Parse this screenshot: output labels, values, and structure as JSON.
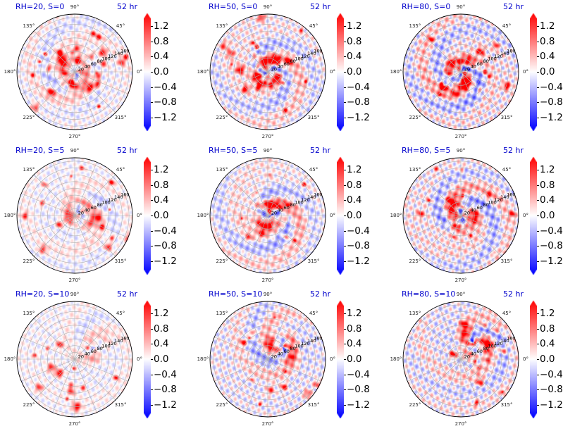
{
  "figure": {
    "colormap": {
      "name": "bwr",
      "negative": "#0000ff",
      "zero": "#ffffff",
      "positive": "#ff0000",
      "extend": "both"
    }
  },
  "chart_data": [
    {
      "type": "heatmap",
      "title": "RH=20, S=0",
      "time_label": "52 hr",
      "projection": "polar",
      "angle_labels": [
        "0°",
        "45°",
        "90°",
        "135°",
        "180°",
        "225°",
        "270°",
        "315°"
      ],
      "radial_labels": [
        "20",
        "40",
        "60",
        "80",
        "100",
        "120",
        "140",
        "160"
      ],
      "colorbar": {
        "ticks": [
          "1.2",
          "0.8",
          "0.4",
          "0.0",
          "−0.4",
          "−0.8",
          "−1.2"
        ],
        "range": [
          -1.4,
          1.4
        ]
      },
      "field": {
        "rh": 20,
        "shear": 0,
        "core": 0.75,
        "ring": 0.55,
        "noise": 0.3,
        "spiral": 0.55,
        "blobs": 30,
        "seed": 11,
        "pos_offset": [
          0,
          0
        ]
      }
    },
    {
      "type": "heatmap",
      "title": "RH=50, S=0",
      "time_label": "52 hr",
      "projection": "polar",
      "angle_labels": [
        "0°",
        "45°",
        "90°",
        "135°",
        "180°",
        "225°",
        "270°",
        "315°"
      ],
      "radial_labels": [
        "20",
        "40",
        "60",
        "80",
        "100",
        "120",
        "140",
        "160"
      ],
      "colorbar": {
        "ticks": [
          "1.2",
          "0.8",
          "0.4",
          "0.0",
          "−0.4",
          "−0.8",
          "−1.2"
        ],
        "range": [
          -1.4,
          1.4
        ]
      },
      "field": {
        "rh": 50,
        "shear": 0,
        "core": 0.95,
        "ring": 0.75,
        "noise": 0.45,
        "spiral": 0.85,
        "blobs": 24,
        "seed": 23,
        "pos_offset": [
          0,
          0
        ]
      }
    },
    {
      "type": "heatmap",
      "title": "RH=80, S=0",
      "time_label": "52 hr",
      "projection": "polar",
      "angle_labels": [
        "0°",
        "45°",
        "90°",
        "135°",
        "180°",
        "225°",
        "270°",
        "315°"
      ],
      "radial_labels": [
        "20",
        "40",
        "60",
        "80",
        "100",
        "120",
        "140",
        "160"
      ],
      "colorbar": {
        "ticks": [
          "1.2",
          "0.8",
          "0.4",
          "0.0",
          "−0.4",
          "−0.8",
          "−1.2"
        ],
        "range": [
          -1.4,
          1.4
        ]
      },
      "field": {
        "rh": 80,
        "shear": 0,
        "core": 1.2,
        "ring": 1.0,
        "noise": 0.55,
        "spiral": 1.0,
        "blobs": 18,
        "seed": 37,
        "pos_offset": [
          0,
          0
        ]
      }
    },
    {
      "type": "heatmap",
      "title": "RH=20, S=5",
      "time_label": "52 hr",
      "projection": "polar",
      "angle_labels": [
        "0°",
        "45°",
        "90°",
        "135°",
        "180°",
        "225°",
        "270°",
        "315°"
      ],
      "radial_labels": [
        "20",
        "40",
        "60",
        "80",
        "100",
        "120",
        "140",
        "160"
      ],
      "colorbar": {
        "ticks": [
          "1.2",
          "0.8",
          "0.4",
          "0.0",
          "−0.4",
          "−0.8",
          "−1.2"
        ],
        "range": [
          -1.4,
          1.4
        ]
      },
      "field": {
        "rh": 20,
        "shear": 5,
        "core": 1.0,
        "ring": 0.35,
        "noise": 0.25,
        "spiral": 0.45,
        "blobs": 14,
        "seed": 41,
        "pos_offset": [
          0.1,
          0.03
        ]
      }
    },
    {
      "type": "heatmap",
      "title": "RH=50, S=5",
      "time_label": "52 hr",
      "projection": "polar",
      "angle_labels": [
        "0°",
        "45°",
        "90°",
        "135°",
        "180°",
        "225°",
        "270°",
        "315°"
      ],
      "radial_labels": [
        "20",
        "40",
        "60",
        "80",
        "100",
        "120",
        "140",
        "160"
      ],
      "colorbar": {
        "ticks": [
          "1.2",
          "0.8",
          "0.4",
          "0.0",
          "−0.4",
          "−0.8",
          "−1.2"
        ],
        "range": [
          -1.4,
          1.4
        ]
      },
      "field": {
        "rh": 50,
        "shear": 5,
        "core": 1.1,
        "ring": 0.85,
        "noise": 0.4,
        "spiral": 0.95,
        "blobs": 14,
        "seed": 53,
        "pos_offset": [
          0.05,
          0.0
        ]
      }
    },
    {
      "type": "heatmap",
      "title": "RH=80, S=5",
      "time_label": "52 hr",
      "projection": "polar",
      "angle_labels": [
        "0°",
        "45°",
        "90°",
        "135°",
        "180°",
        "225°",
        "270°",
        "315°"
      ],
      "radial_labels": [
        "20",
        "40",
        "60",
        "80",
        "100",
        "120",
        "140",
        "160"
      ],
      "colorbar": {
        "ticks": [
          "1.2",
          "0.8",
          "0.4",
          "0.0",
          "−0.4",
          "−0.8",
          "−1.2"
        ],
        "range": [
          -1.4,
          1.4
        ]
      },
      "field": {
        "rh": 80,
        "shear": 5,
        "core": 1.2,
        "ring": 0.95,
        "noise": 0.5,
        "spiral": 1.0,
        "blobs": 14,
        "seed": 67,
        "pos_offset": [
          0.02,
          0.0
        ]
      }
    },
    {
      "type": "heatmap",
      "title": "RH=20, S=10",
      "time_label": "52 hr",
      "projection": "polar",
      "angle_labels": [
        "0°",
        "45°",
        "90°",
        "135°",
        "180°",
        "225°",
        "270°",
        "315°"
      ],
      "radial_labels": [
        "20",
        "40",
        "60",
        "80",
        "100",
        "120",
        "140",
        "160"
      ],
      "colorbar": {
        "ticks": [
          "1.2",
          "0.8",
          "0.4",
          "0.0",
          "−0.4",
          "−0.8",
          "−1.2"
        ],
        "range": [
          -1.4,
          1.4
        ]
      },
      "field": {
        "rh": 20,
        "shear": 10,
        "core": 0.35,
        "ring": 0.25,
        "noise": 0.25,
        "spiral": 0.3,
        "blobs": 16,
        "seed": 71,
        "pos_offset": [
          0.35,
          0.22
        ]
      }
    },
    {
      "type": "heatmap",
      "title": "RH=50, S=10",
      "time_label": "52 hr",
      "projection": "polar",
      "angle_labels": [
        "0°",
        "45°",
        "90°",
        "135°",
        "180°",
        "225°",
        "270°",
        "315°"
      ],
      "radial_labels": [
        "20",
        "40",
        "60",
        "80",
        "100",
        "120",
        "140",
        "160"
      ],
      "colorbar": {
        "ticks": [
          "1.2",
          "0.8",
          "0.4",
          "0.0",
          "−0.4",
          "−0.8",
          "−1.2"
        ],
        "range": [
          -1.4,
          1.4
        ]
      },
      "field": {
        "rh": 50,
        "shear": 10,
        "core": 1.0,
        "ring": 0.7,
        "noise": 0.45,
        "spiral": 0.8,
        "blobs": 12,
        "seed": 83,
        "pos_offset": [
          0.25,
          0.22
        ]
      }
    },
    {
      "type": "heatmap",
      "title": "RH=80, S=10",
      "time_label": "52 hr",
      "projection": "polar",
      "angle_labels": [
        "0°",
        "45°",
        "90°",
        "135°",
        "180°",
        "225°",
        "270°",
        "315°"
      ],
      "radial_labels": [
        "20",
        "40",
        "60",
        "80",
        "100",
        "120",
        "140",
        "160"
      ],
      "colorbar": {
        "ticks": [
          "1.2",
          "0.8",
          "0.4",
          "0.0",
          "−0.4",
          "−0.8",
          "−1.2"
        ],
        "range": [
          -1.4,
          1.4
        ]
      },
      "field": {
        "rh": 80,
        "shear": 10,
        "core": 0.95,
        "ring": 0.7,
        "noise": 0.5,
        "spiral": 0.75,
        "blobs": 14,
        "seed": 97,
        "pos_offset": [
          0.22,
          0.28
        ]
      }
    }
  ]
}
